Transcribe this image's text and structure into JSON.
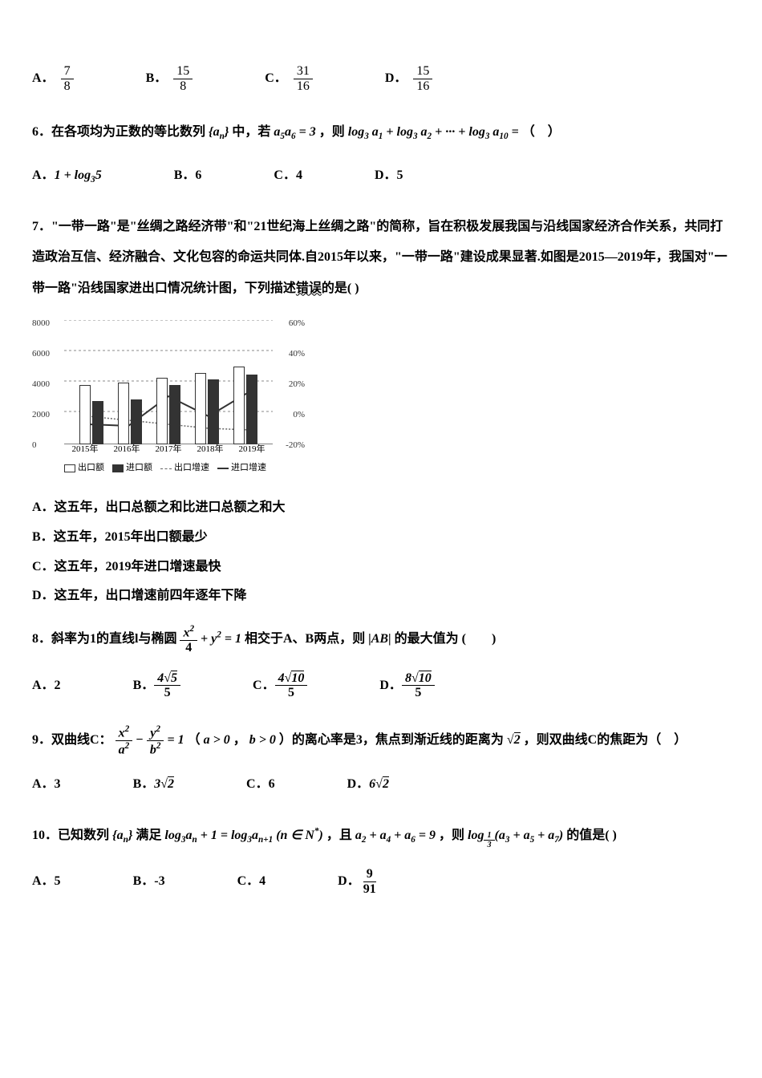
{
  "q5_options": {
    "a": {
      "num": "7",
      "den": "8"
    },
    "b": {
      "num": "15",
      "den": "8"
    },
    "c": {
      "num": "31",
      "den": "16"
    },
    "d": {
      "num": "15",
      "den": "16"
    }
  },
  "q6": {
    "num": "6",
    "text1": "．在各项均为正数的等比数列",
    "text2": "中，若",
    "text3": "，则",
    "text4": "（　）",
    "opt_a": "A．",
    "opt_a_val": "1 + log₃5",
    "opt_b": "B．6",
    "opt_c": "C．4",
    "opt_d": "D．5"
  },
  "q7": {
    "text1": "7．\"一带一路\"是\"丝绸之路经济带\"和\"21世纪海上丝绸之路\"的简称，旨在积极发展我国与沿线国家经济合作关系，共同打造政治互信、经济融合、文化包容的命运共同体.自2015年以来，\"一带一路\"建设成果显著.如图是2015—2019年，我国对\"一带一路\"沿线国家进出口情况统计图，下列描述",
    "text_wavy": "错误",
    "text2": "的是(    )",
    "chart": {
      "ylabels": [
        "8000",
        "6000",
        "4000",
        "2000",
        "0"
      ],
      "rlabels": [
        "60%",
        "40%",
        "20%",
        "0%",
        "-20%"
      ],
      "xlabels": [
        "2015年",
        "2016年",
        "2017年",
        "2018年",
        "2019年"
      ],
      "legend": [
        "出口额",
        "进口额",
        "出口增速",
        "进口增速"
      ],
      "colors": {
        "grid": "#888888",
        "export_bar": "#ffffff",
        "import_bar": "#333333",
        "export_line": "#666666",
        "import_line": "#333333"
      },
      "export_values": [
        3800,
        4000,
        4300,
        4600,
        5000
      ],
      "import_values": [
        2800,
        2900,
        3800,
        4200,
        4500
      ],
      "y_max": 8000
    },
    "stmt_a": "A．这五年，出口总额之和比进口总额之和大",
    "stmt_b": "B．这五年，2015年出口额最少",
    "stmt_c": "C．这五年，2019年进口增速最快",
    "stmt_d": "D．这五年，出口增速前四年逐年下降"
  },
  "q8": {
    "text1": "8．斜率为1的直线l与椭圆",
    "text2": "相交于A、B两点，则",
    "text3": "的最大值为",
    "paren": "(　　)",
    "opt_a_label": "A．2",
    "opt_b_label": "B．",
    "opt_b_num": "4√5",
    "opt_b_den": "5",
    "opt_c_label": "C．",
    "opt_c_num": "4√10",
    "opt_c_den": "5",
    "opt_d_label": "D．",
    "opt_d_num": "8√10",
    "opt_d_den": "5"
  },
  "q9": {
    "text1": "9．双曲线C：",
    "text2": "（",
    "text3": "，",
    "text4": "）的离心率是3，焦点到渐近线的距离为",
    "text5": "，则双曲线C的焦距为（　）",
    "opt_a": "A．3",
    "opt_b_label": "B．",
    "opt_b_val": "3√2",
    "opt_c": "C．6",
    "opt_d_label": "D．",
    "opt_d_val": "6√2"
  },
  "q10": {
    "text1": "10．已知数列",
    "text2": "满足",
    "text3": "，且",
    "text4": "，则",
    "text5": "的值是(   )",
    "opt_a": "A．5",
    "opt_b": "B．-3",
    "opt_c": "C．4",
    "opt_d_label": "D．",
    "opt_d_num": "9",
    "opt_d_den": "91"
  }
}
